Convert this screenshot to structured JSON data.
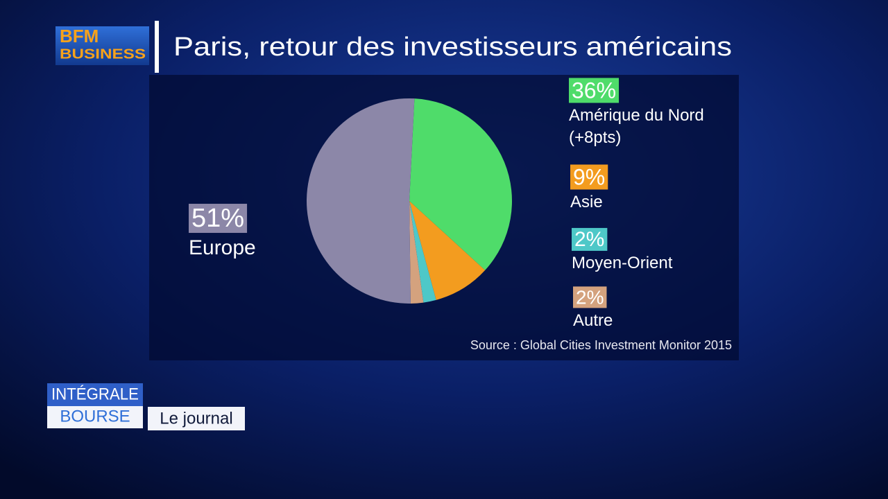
{
  "header": {
    "logo_top": "BFM",
    "logo_bottom": "BUSINESS"
  },
  "chart_data": {
    "type": "pie",
    "title": "Paris, retour des investisseurs américains",
    "categories": [
      "Amérique du Nord",
      "Asie",
      "Moyen-Orient",
      "Autre",
      "Europe"
    ],
    "category_notes": [
      "(+8pts)",
      null,
      null,
      null,
      null
    ],
    "values": [
      36,
      9,
      2,
      2,
      51
    ],
    "value_labels": [
      "36%",
      "9%",
      "2%",
      "2%",
      "51%"
    ],
    "colors": [
      "#4fdc6a",
      "#f39c1f",
      "#4ec8c8",
      "#d4a27e",
      "#8c87a8"
    ],
    "source": "Source : Global Cities Investment Monitor 2015"
  },
  "footer": {
    "show_top": "INTÉGRALE",
    "show_bottom": "BOURSE",
    "segment": "Le journal"
  }
}
